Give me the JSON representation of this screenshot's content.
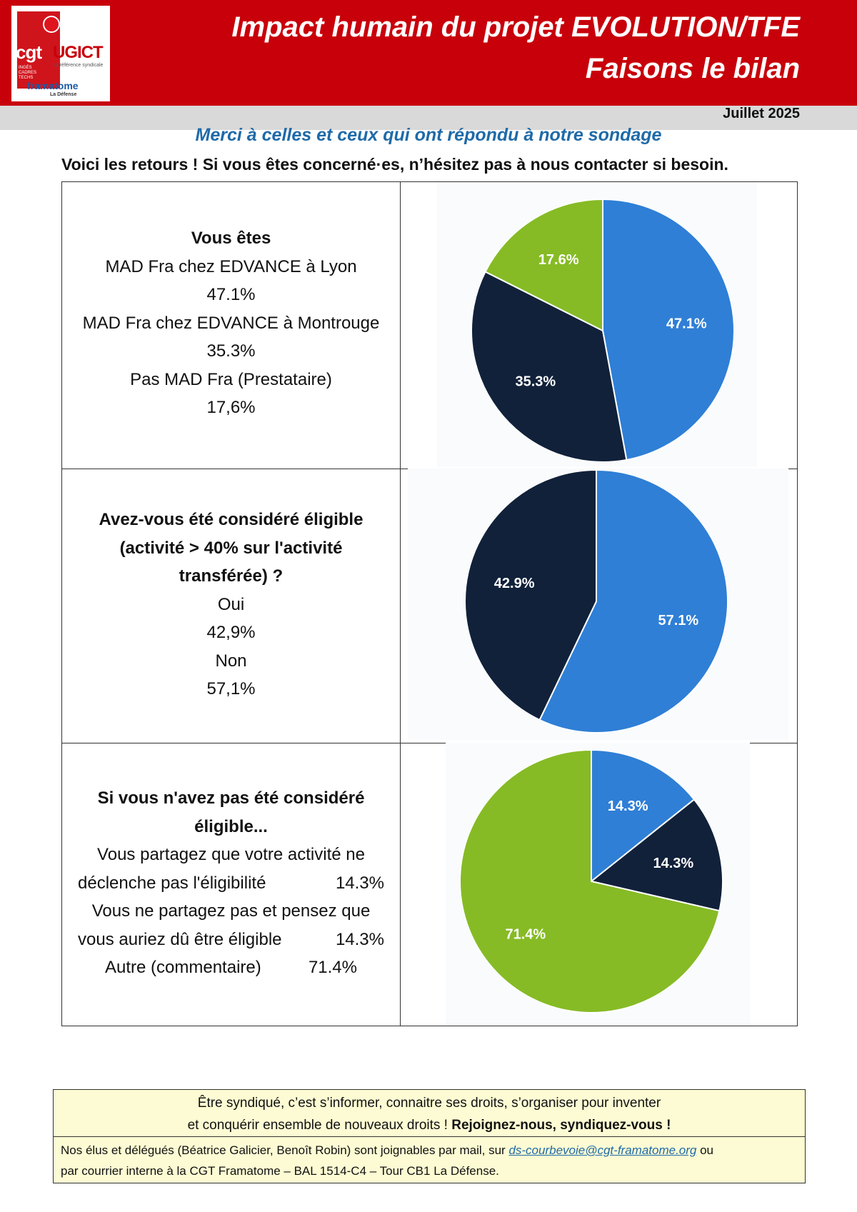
{
  "header": {
    "logo": {
      "cgt": "cgt",
      "ugict": "UGICT",
      "tagline": "La référence syndicale",
      "ict": "INGÉS CADRES TECHS",
      "framatome": "framatome",
      "site": "La Défense",
      "icon": "poppy-icon"
    },
    "title_line1": "Impact humain du projet EVOLUTION/TFE",
    "title_line2": "Faisons le bilan",
    "date": "Juillet 2025",
    "colors": {
      "banner": "#c8000a",
      "subtitle": "#1f6aa8"
    }
  },
  "intro": {
    "thanks": "Merci à celles et ceux qui ont répondu à notre sondage",
    "lead": "Voici les retours ! Si vous êtes concerné·es, n’hésitez pas à nous contacter si besoin."
  },
  "section1": {
    "question": "Vous êtes",
    "answers": [
      {
        "label": "MAD Fra chez EDVANCE à Lyon",
        "value": "47.1%"
      },
      {
        "label": "MAD Fra chez EDVANCE à Montrouge",
        "value": "35.3%"
      },
      {
        "label": "Pas MAD Fra (Prestataire)",
        "value": "17,6%"
      }
    ]
  },
  "section2": {
    "question_l1": "Avez-vous été considéré éligible",
    "question_l2": "(activité > 40% sur l'activité",
    "question_l3": "transférée) ?",
    "answers": [
      {
        "label": "Oui",
        "value": "42,9%"
      },
      {
        "label": "Non",
        "value": "57,1%"
      }
    ]
  },
  "section3": {
    "question_l1": "Si vous n'avez pas été considéré",
    "question_l2": "éligible...",
    "answers": [
      {
        "label_l1": "Vous partagez que votre activité ne",
        "label_l2": "déclenche pas l'éligibilité",
        "value": "14.3%"
      },
      {
        "label_l1": "Vous ne partagez pas et pensez que",
        "label_l2": "vous auriez dû être éligible",
        "value": "14.3%"
      },
      {
        "label_l1": "Autre (commentaire)",
        "value": "71.4%"
      }
    ]
  },
  "chart_data": [
    {
      "type": "pie",
      "slices": [
        {
          "value": 47.1,
          "label": "47.1%",
          "color": "#2f7fd6"
        },
        {
          "value": 35.3,
          "label": "35.3%",
          "color": "#11213a"
        },
        {
          "value": 17.6,
          "label": "17.6%",
          "color": "#86bb25"
        }
      ]
    },
    {
      "type": "pie",
      "slices": [
        {
          "value": 57.1,
          "label": "57.1%",
          "color": "#2f7fd6"
        },
        {
          "value": 42.9,
          "label": "42.9%",
          "color": "#11213a"
        }
      ]
    },
    {
      "type": "pie",
      "slices": [
        {
          "value": 14.3,
          "label": "14.3%",
          "color": "#2f7fd6"
        },
        {
          "value": 14.3,
          "label": "14.3%",
          "color": "#11213a"
        },
        {
          "value": 71.4,
          "label": "71.4%",
          "color": "#86bb25"
        }
      ]
    }
  ],
  "footer": {
    "line1": "Être syndiqué, c’est s’informer, connaitre ses droits, s’organiser pour inventer",
    "line2a": "et conquérir ensemble de nouveaux droits ! ",
    "line2b": "Rejoignez-nous, syndiquez-vous !",
    "contact_a": "Nos élus et délégués (Béatrice Galicier, Benoît Robin) sont joignables par mail, sur ",
    "email": "ds-courbevoie@cgt-framatome.org",
    "contact_b": " ou",
    "contact_c": "par courrier interne à la CGT Framatome – BAL 1514-C4 – Tour CB1 La Défense."
  }
}
